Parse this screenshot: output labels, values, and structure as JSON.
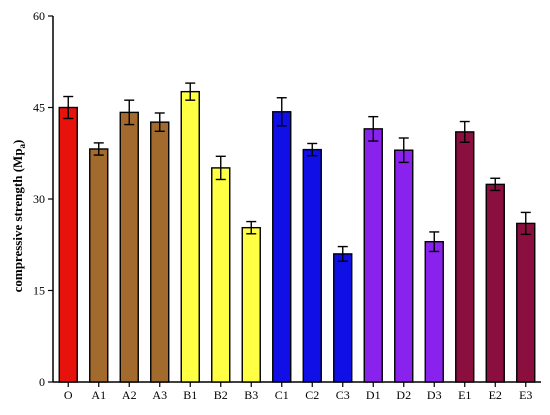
{
  "chart_data": {
    "type": "bar",
    "title": "",
    "xlabel": "",
    "ylabel": "compressive strength",
    "ylabel_unit_main": "Mp",
    "ylabel_unit_sub": "a",
    "ylim": [
      0,
      60
    ],
    "yticks": [
      0,
      15,
      30,
      45,
      60
    ],
    "grid": false,
    "categories": [
      "O",
      "A1",
      "A2",
      "A3",
      "B1",
      "B2",
      "B3",
      "C1",
      "C2",
      "C3",
      "D1",
      "D2",
      "D3",
      "E1",
      "E2",
      "E3"
    ],
    "values": [
      45.0,
      38.2,
      44.2,
      42.6,
      47.6,
      35.1,
      25.3,
      44.3,
      38.1,
      21.0,
      41.5,
      38.0,
      23.0,
      41.0,
      32.4,
      26.0
    ],
    "errors": [
      1.8,
      1.0,
      2.0,
      1.5,
      1.4,
      1.9,
      1.0,
      2.3,
      1.0,
      1.2,
      2.0,
      2.0,
      1.6,
      1.7,
      1.0,
      1.8
    ],
    "colors": [
      "#e8120c",
      "#a36a2e",
      "#a36a2e",
      "#a36a2e",
      "#ffff44",
      "#ffff44",
      "#ffff44",
      "#1010e6",
      "#1010e6",
      "#1010e6",
      "#8a22ee",
      "#8a22ee",
      "#8a22ee",
      "#8a0f3e",
      "#8a0f3e",
      "#8a0f3e"
    ]
  }
}
